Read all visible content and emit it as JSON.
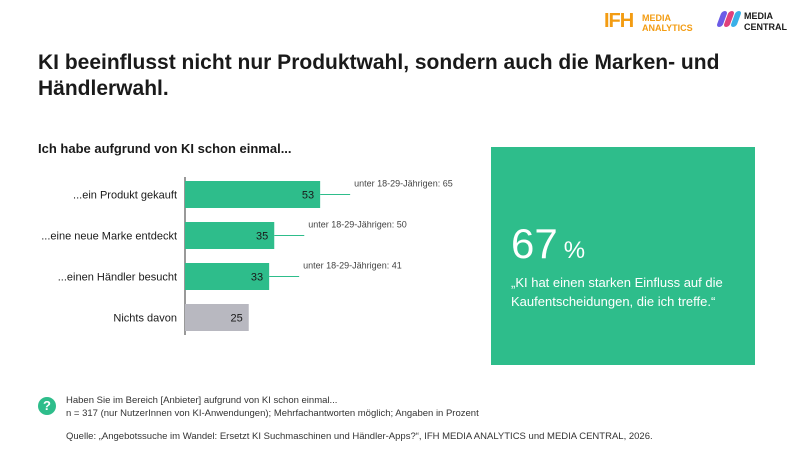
{
  "logos": {
    "ifh_mark": "IFH",
    "ifh_line1": "MEDIA",
    "ifh_line2": "ANALYTICS",
    "mc_line1": "MEDIA",
    "mc_line2": "CENTRAL"
  },
  "title": "KI beeinflusst nicht nur Produktwahl, sondern auch die Marken- und Händlerwahl.",
  "chart_data": {
    "type": "bar",
    "orientation": "horizontal",
    "title": "Ich habe aufgrund von KI schon einmal...",
    "categories": [
      "...ein Produkt gekauft",
      "...eine neue Marke entdeckt",
      "...einen Händler besucht",
      "Nichts davon"
    ],
    "values": [
      53,
      35,
      33,
      25
    ],
    "bar_colors": [
      "#2ebd8b",
      "#2ebd8b",
      "#2ebd8b",
      "#b8b8c0"
    ],
    "annotations": [
      "unter 18-29-Jährigen: 65",
      "unter 18-29-Jährigen: 50",
      "unter 18-29-Jährigen: 41",
      ""
    ],
    "xlim": [
      0,
      100
    ],
    "grid": false
  },
  "callout": {
    "value": "67",
    "unit": "%",
    "quote": "„KI hat einen starken Einfluss auf die Kaufentscheidungen, die ich treffe.“",
    "color": "#2ebd8b"
  },
  "footnote": {
    "line1": "Haben Sie im Bereich [Anbieter] aufgrund von KI schon einmal...",
    "line2": "n = 317 (nur NutzerInnen von KI-Anwendungen); Mehrfachantworten möglich; Angaben in Prozent",
    "source": "Quelle: „Angebotssuche im Wandel: Ersetzt KI Suchmaschinen und Händler-Apps?“, IFH MEDIA ANALYTICS und MEDIA CENTRAL, 2026.",
    "help_icon": "question-icon"
  }
}
